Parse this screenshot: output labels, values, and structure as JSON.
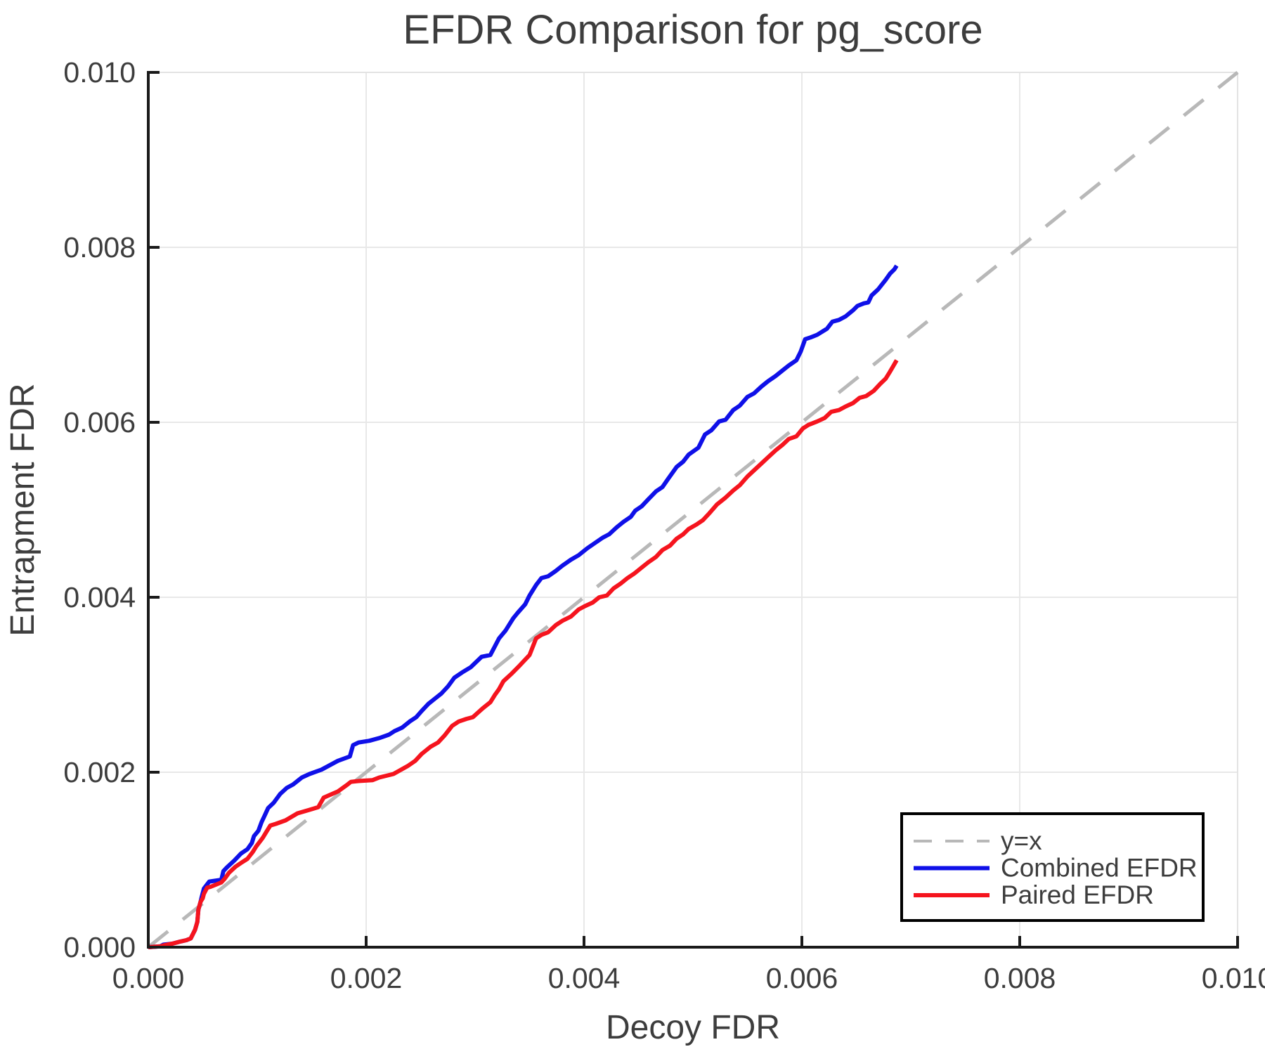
{
  "title": "EFDR Comparison for pg_score",
  "colors": {
    "text": "#3d3d3d",
    "axis": "#1a1a1a",
    "grid": "#e8e8e8",
    "minor_spine": "#e3e3e3",
    "background": "#ffffff",
    "legend_border": "#000000",
    "identity": "#b8b8b8",
    "combined": "#0f10e8",
    "paired": "#f5141e"
  },
  "chart_data": {
    "type": "line",
    "title": "EFDR Comparison for pg_score",
    "xlabel": "Decoy FDR",
    "ylabel": "Entrapment FDR",
    "xlim": [
      0.0,
      0.01
    ],
    "ylim": [
      0.0,
      0.01
    ],
    "xticks": [
      0.0,
      0.002,
      0.004,
      0.006,
      0.008,
      0.01
    ],
    "yticks": [
      0.0,
      0.002,
      0.004,
      0.006,
      0.008,
      0.01
    ],
    "xtick_labels": [
      "0.000",
      "0.002",
      "0.004",
      "0.006",
      "0.008",
      "0.010"
    ],
    "ytick_labels": [
      "0.000",
      "0.002",
      "0.004",
      "0.006",
      "0.008",
      "0.010"
    ],
    "grid": true,
    "legend_position": "lower right",
    "series": [
      {
        "name": "y=x",
        "style": "dashed",
        "color": "#b8b8b8",
        "points": [
          [
            0.0,
            0.0
          ],
          [
            0.01,
            0.01
          ]
        ]
      },
      {
        "name": "Combined EFDR",
        "style": "solid",
        "color": "#0f10e8",
        "points": [
          [
            0,
            0
          ],
          [
            0.00011,
            1e-05
          ],
          [
            0.00014,
            3e-05
          ],
          [
            0.00022,
            4e-05
          ],
          [
            0.00028,
            6e-05
          ],
          [
            0.00035,
            8e-05
          ],
          [
            0.00039,
            0.0001
          ],
          [
            0.00043,
            0.0002
          ],
          [
            0.00045,
            0.00029
          ],
          [
            0.00046,
            0.00043
          ],
          [
            0.00048,
            0.00052
          ],
          [
            0.00049,
            0.00057
          ],
          [
            0.00051,
            0.00067
          ],
          [
            0.00056,
            0.00075
          ],
          [
            0.00067,
            0.00077
          ],
          [
            0.00069,
            0.00087
          ],
          [
            0.00072,
            0.00091
          ],
          [
            0.00079,
            0.00099
          ],
          [
            0.00085,
            0.00107
          ],
          [
            0.00091,
            0.00112
          ],
          [
            0.00095,
            0.00119
          ],
          [
            0.00097,
            0.00127
          ],
          [
            0.00101,
            0.00133
          ],
          [
            0.00104,
            0.00143
          ],
          [
            0.00107,
            0.00151
          ],
          [
            0.0011,
            0.00159
          ],
          [
            0.00115,
            0.00165
          ],
          [
            0.00121,
            0.00175
          ],
          [
            0.00127,
            0.00182
          ],
          [
            0.00133,
            0.00186
          ],
          [
            0.00141,
            0.00194
          ],
          [
            0.00148,
            0.00198
          ],
          [
            0.00159,
            0.00203
          ],
          [
            0.00165,
            0.00207
          ],
          [
            0.00174,
            0.00213
          ],
          [
            0.00185,
            0.00218
          ],
          [
            0.00188,
            0.00231
          ],
          [
            0.00193,
            0.00234
          ],
          [
            0.00203,
            0.00236
          ],
          [
            0.00212,
            0.00239
          ],
          [
            0.00221,
            0.00243
          ],
          [
            0.00226,
            0.00247
          ],
          [
            0.00233,
            0.00251
          ],
          [
            0.0024,
            0.00258
          ],
          [
            0.00246,
            0.00263
          ],
          [
            0.00251,
            0.0027
          ],
          [
            0.00257,
            0.00278
          ],
          [
            0.00264,
            0.00285
          ],
          [
            0.00269,
            0.0029
          ],
          [
            0.00275,
            0.00298
          ],
          [
            0.00281,
            0.00308
          ],
          [
            0.00288,
            0.00314
          ],
          [
            0.00296,
            0.0032
          ],
          [
            0.00306,
            0.00332
          ],
          [
            0.00314,
            0.00334
          ],
          [
            0.00322,
            0.00353
          ],
          [
            0.00328,
            0.00362
          ],
          [
            0.00335,
            0.00376
          ],
          [
            0.00339,
            0.00382
          ],
          [
            0.00346,
            0.00392
          ],
          [
            0.0035,
            0.00402
          ],
          [
            0.00356,
            0.00414
          ],
          [
            0.00361,
            0.00422
          ],
          [
            0.00367,
            0.00424
          ],
          [
            0.00374,
            0.0043
          ],
          [
            0.0038,
            0.00436
          ],
          [
            0.00388,
            0.00443
          ],
          [
            0.00395,
            0.00448
          ],
          [
            0.00403,
            0.00456
          ],
          [
            0.0041,
            0.00462
          ],
          [
            0.00417,
            0.00468
          ],
          [
            0.00423,
            0.00472
          ],
          [
            0.0043,
            0.0048
          ],
          [
            0.00436,
            0.00486
          ],
          [
            0.00443,
            0.00492
          ],
          [
            0.00447,
            0.00499
          ],
          [
            0.00453,
            0.00504
          ],
          [
            0.00459,
            0.00512
          ],
          [
            0.00466,
            0.00521
          ],
          [
            0.00472,
            0.00526
          ],
          [
            0.00477,
            0.00535
          ],
          [
            0.00485,
            0.00549
          ],
          [
            0.00491,
            0.00555
          ],
          [
            0.00496,
            0.00563
          ],
          [
            0.00505,
            0.00571
          ],
          [
            0.00511,
            0.00586
          ],
          [
            0.00517,
            0.00591
          ],
          [
            0.00524,
            0.00601
          ],
          [
            0.0053,
            0.00603
          ],
          [
            0.00537,
            0.00614
          ],
          [
            0.00543,
            0.00619
          ],
          [
            0.0055,
            0.00629
          ],
          [
            0.00556,
            0.00633
          ],
          [
            0.00563,
            0.00641
          ],
          [
            0.00569,
            0.00647
          ],
          [
            0.00576,
            0.00653
          ],
          [
            0.00582,
            0.00659
          ],
          [
            0.00588,
            0.00665
          ],
          [
            0.00595,
            0.00671
          ],
          [
            0.00599,
            0.00681
          ],
          [
            0.00603,
            0.00695
          ],
          [
            0.00608,
            0.00697
          ],
          [
            0.00614,
            0.007
          ],
          [
            0.00623,
            0.00707
          ],
          [
            0.00628,
            0.00715
          ],
          [
            0.00634,
            0.00717
          ],
          [
            0.0064,
            0.00721
          ],
          [
            0.00647,
            0.00728
          ],
          [
            0.00651,
            0.00733
          ],
          [
            0.00657,
            0.00736
          ],
          [
            0.00661,
            0.00737
          ],
          [
            0.00664,
            0.00745
          ],
          [
            0.0067,
            0.00752
          ],
          [
            0.00677,
            0.00763
          ],
          [
            0.00681,
            0.0077
          ],
          [
            0.00685,
            0.00775
          ],
          [
            0.00687,
            0.00779
          ]
        ]
      },
      {
        "name": "Paired EFDR",
        "style": "solid",
        "color": "#f5141e",
        "points": [
          [
            0,
            0
          ],
          [
            0.00011,
            1e-05
          ],
          [
            0.00014,
            2e-05
          ],
          [
            0.00022,
            4e-05
          ],
          [
            0.00028,
            6e-05
          ],
          [
            0.00035,
            8e-05
          ],
          [
            0.00039,
            0.0001
          ],
          [
            0.00043,
            0.0002
          ],
          [
            0.00045,
            0.00029
          ],
          [
            0.00046,
            0.00043
          ],
          [
            0.00048,
            0.00052
          ],
          [
            0.0005,
            0.00056
          ],
          [
            0.00051,
            0.00061
          ],
          [
            0.00054,
            0.00068
          ],
          [
            0.00057,
            0.00069
          ],
          [
            0.00067,
            0.00074
          ],
          [
            0.0007,
            0.00078
          ],
          [
            0.00074,
            0.00085
          ],
          [
            0.0008,
            0.00092
          ],
          [
            0.00086,
            0.00097
          ],
          [
            0.00091,
            0.00101
          ],
          [
            0.00096,
            0.00109
          ],
          [
            0.00099,
            0.00115
          ],
          [
            0.00105,
            0.00125
          ],
          [
            0.00109,
            0.00133
          ],
          [
            0.00112,
            0.00139
          ],
          [
            0.00117,
            0.00141
          ],
          [
            0.00126,
            0.00145
          ],
          [
            0.00137,
            0.00153
          ],
          [
            0.00148,
            0.00157
          ],
          [
            0.00156,
            0.0016
          ],
          [
            0.00161,
            0.00171
          ],
          [
            0.00174,
            0.00178
          ],
          [
            0.00183,
            0.00186
          ],
          [
            0.00186,
            0.00189
          ],
          [
            0.00193,
            0.0019
          ],
          [
            0.00206,
            0.00191
          ],
          [
            0.00212,
            0.00194
          ],
          [
            0.00225,
            0.00198
          ],
          [
            0.00238,
            0.00207
          ],
          [
            0.00245,
            0.00213
          ],
          [
            0.00251,
            0.00221
          ],
          [
            0.00259,
            0.00229
          ],
          [
            0.00266,
            0.00234
          ],
          [
            0.00272,
            0.00242
          ],
          [
            0.00279,
            0.00253
          ],
          [
            0.00285,
            0.00258
          ],
          [
            0.00292,
            0.00261
          ],
          [
            0.00298,
            0.00263
          ],
          [
            0.00307,
            0.00273
          ],
          [
            0.00314,
            0.0028
          ],
          [
            0.00318,
            0.00288
          ],
          [
            0.00322,
            0.00295
          ],
          [
            0.00326,
            0.00304
          ],
          [
            0.00333,
            0.00312
          ],
          [
            0.00341,
            0.00322
          ],
          [
            0.0035,
            0.00334
          ],
          [
            0.00356,
            0.00353
          ],
          [
            0.00361,
            0.00357
          ],
          [
            0.00367,
            0.0036
          ],
          [
            0.00374,
            0.00368
          ],
          [
            0.0038,
            0.00373
          ],
          [
            0.00388,
            0.00378
          ],
          [
            0.00395,
            0.00386
          ],
          [
            0.00401,
            0.0039
          ],
          [
            0.00408,
            0.00394
          ],
          [
            0.00414,
            0.004
          ],
          [
            0.00421,
            0.00402
          ],
          [
            0.00427,
            0.0041
          ],
          [
            0.00434,
            0.00416
          ],
          [
            0.0044,
            0.00422
          ],
          [
            0.00446,
            0.00427
          ],
          [
            0.00453,
            0.00434
          ],
          [
            0.00459,
            0.0044
          ],
          [
            0.00466,
            0.00446
          ],
          [
            0.00472,
            0.00454
          ],
          [
            0.00479,
            0.00459
          ],
          [
            0.00485,
            0.00467
          ],
          [
            0.00491,
            0.00472
          ],
          [
            0.00496,
            0.00478
          ],
          [
            0.00503,
            0.00483
          ],
          [
            0.00509,
            0.00488
          ],
          [
            0.00515,
            0.00496
          ],
          [
            0.00522,
            0.00506
          ],
          [
            0.0053,
            0.00514
          ],
          [
            0.00537,
            0.00522
          ],
          [
            0.00543,
            0.00528
          ],
          [
            0.0055,
            0.00538
          ],
          [
            0.00556,
            0.00545
          ],
          [
            0.00563,
            0.00553
          ],
          [
            0.00569,
            0.0056
          ],
          [
            0.00576,
            0.00568
          ],
          [
            0.00582,
            0.00574
          ],
          [
            0.00588,
            0.00581
          ],
          [
            0.00595,
            0.00584
          ],
          [
            0.00601,
            0.00593
          ],
          [
            0.00606,
            0.00597
          ],
          [
            0.00614,
            0.00601
          ],
          [
            0.00621,
            0.00605
          ],
          [
            0.00627,
            0.00612
          ],
          [
            0.00634,
            0.00614
          ],
          [
            0.0064,
            0.00618
          ],
          [
            0.00647,
            0.00622
          ],
          [
            0.00653,
            0.00628
          ],
          [
            0.00659,
            0.0063
          ],
          [
            0.00666,
            0.00636
          ],
          [
            0.00672,
            0.00644
          ],
          [
            0.00677,
            0.0065
          ],
          [
            0.00681,
            0.00658
          ],
          [
            0.00687,
            0.00671
          ]
        ]
      }
    ]
  }
}
